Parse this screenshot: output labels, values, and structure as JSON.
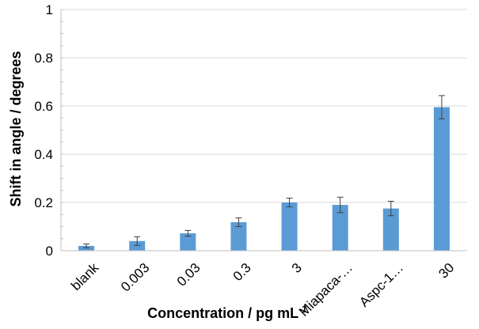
{
  "chart_data": {
    "type": "bar",
    "categories": [
      "blank",
      "0.003",
      "0.03",
      "0.3",
      "3",
      "Miapaca-…",
      "Aspc-1…",
      "30"
    ],
    "values": [
      0.02,
      0.04,
      0.072,
      0.118,
      0.2,
      0.19,
      0.175,
      0.595
    ],
    "errors": [
      0.008,
      0.018,
      0.012,
      0.018,
      0.018,
      0.032,
      0.03,
      0.048
    ],
    "title": "",
    "xlabel": "Concentration / pg mL",
    "xlabel_superscript": "-1",
    "ylabel": "Shift in angle / degrees",
    "ylim": [
      0,
      1
    ],
    "yticks": [
      0,
      0.2,
      0.4,
      0.6,
      0.8,
      1
    ],
    "ytick_labels": [
      "0",
      "0.2",
      "0.4",
      "0.6",
      "0.8",
      "1"
    ],
    "grid": true,
    "bar_color": "#5b9bd5",
    "error_bar_color": "#404040",
    "grid_color": "#d9d9d9"
  }
}
